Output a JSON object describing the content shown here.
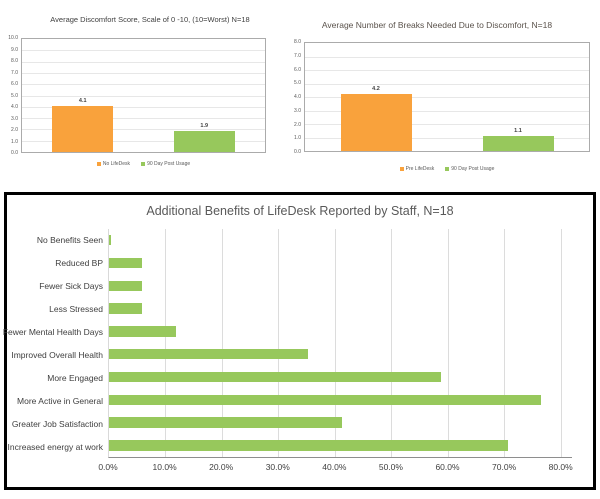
{
  "chart_data": [
    {
      "id": "discomfort",
      "type": "bar",
      "orientation": "vertical",
      "title": "Average Discomfort Score, Scale of 0 -10, (10=Worst)  N=18",
      "categories": [
        "No LifeDesk",
        "90 Day Post Usage"
      ],
      "values": [
        4.1,
        1.9
      ],
      "data_labels": [
        "4.1",
        "1.9"
      ],
      "bar_colors": [
        "#F9A23C",
        "#97C85C"
      ],
      "ylim": [
        0,
        10
      ],
      "ytick_step": 1.0,
      "grid": true,
      "legend": [
        "No LifeDesk",
        "90 Day Post Usage"
      ],
      "legend_position": "bottom"
    },
    {
      "id": "breaks",
      "type": "bar",
      "orientation": "vertical",
      "title": "Average Number of Breaks Needed Due to Discomfort, N=18",
      "categories": [
        "Pre LifeDesk",
        "90 Day Post Usage"
      ],
      "values": [
        4.2,
        1.1
      ],
      "data_labels": [
        "4.2",
        "1.1"
      ],
      "bar_colors": [
        "#F9A23C",
        "#97C85C"
      ],
      "ylim": [
        0,
        8
      ],
      "ytick_step": 1.0,
      "grid": true,
      "legend": [
        "Pre LifeDesk",
        "90 Day Post Usage"
      ],
      "legend_position": "bottom"
    },
    {
      "id": "benefits",
      "type": "bar",
      "orientation": "horizontal",
      "title": "Additional Benefits of LifeDesk Reported by Staff, N=18",
      "categories": [
        "No Benefits Seen",
        "Reduced BP",
        "Fewer Sick Days",
        "Less Stressed",
        "Fewer Mental Health Days",
        "Improved Overall Health",
        "More Engaged",
        "More Active in General",
        "Greater Job Satisfaction",
        "Increased energy at work"
      ],
      "values_percent": [
        0.3,
        5.9,
        5.9,
        5.9,
        11.8,
        35.3,
        58.8,
        76.5,
        41.2,
        70.6
      ],
      "bar_color": "#97C85C",
      "xlim": [
        0,
        80
      ],
      "xtick_step": 10,
      "xtick_labels": [
        "0.0%",
        "10.0%",
        "20.0%",
        "30.0%",
        "40.0%",
        "50.0%",
        "60.0%",
        "70.0%",
        "80.0%"
      ],
      "grid": true,
      "legend_position": "none"
    }
  ],
  "colors": {
    "pre_orange": "#F9A23C",
    "post_green": "#97C85C",
    "title_gray": "#595959",
    "axis_text": "#404040",
    "gridline": "#DCDCDC",
    "panel_border": "#000000"
  }
}
